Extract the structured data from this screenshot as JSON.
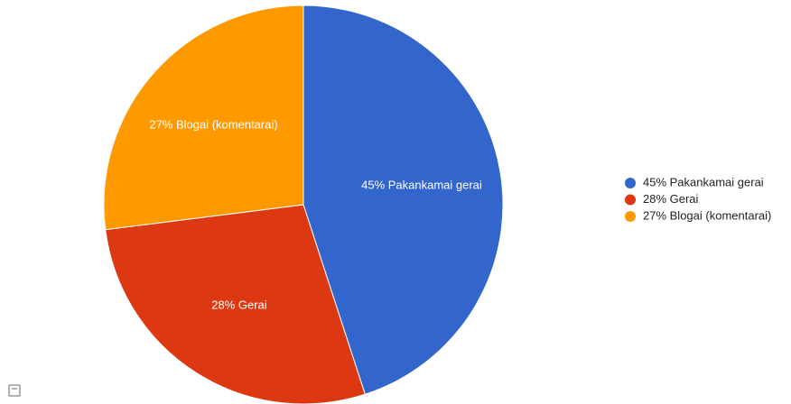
{
  "chart_data": {
    "type": "pie",
    "categories": [
      "45% Pakankamai gerai",
      "28% Gerai",
      "27% Blogai (komentarai)"
    ],
    "values": [
      45,
      28,
      27
    ],
    "colors": [
      "#3366cc",
      "#dc3912",
      "#ff9900"
    ],
    "legend": "right"
  }
}
